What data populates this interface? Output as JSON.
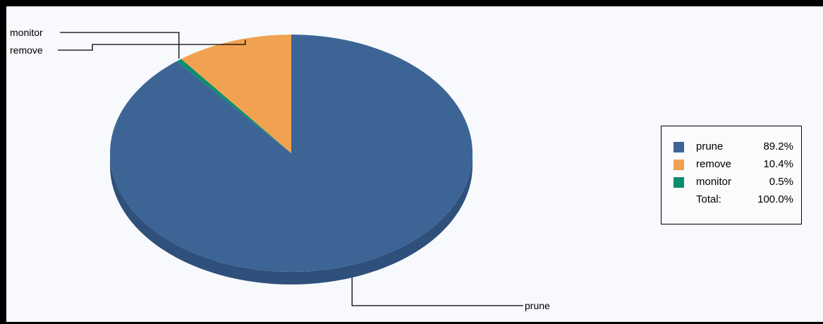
{
  "chart_data": {
    "type": "pie",
    "categories": [
      "prune",
      "remove",
      "monitor"
    ],
    "values": [
      89.2,
      10.4,
      0.5
    ],
    "labels": [
      "89.2%",
      "10.4%",
      "0.5%"
    ],
    "colors": [
      "#3c6596",
      "#f0a250",
      "#0b8e6e"
    ],
    "side_color": "#2f507a",
    "total_label": "Total:",
    "total_value": "100.0%",
    "legend_position": "right",
    "style": "3d"
  }
}
